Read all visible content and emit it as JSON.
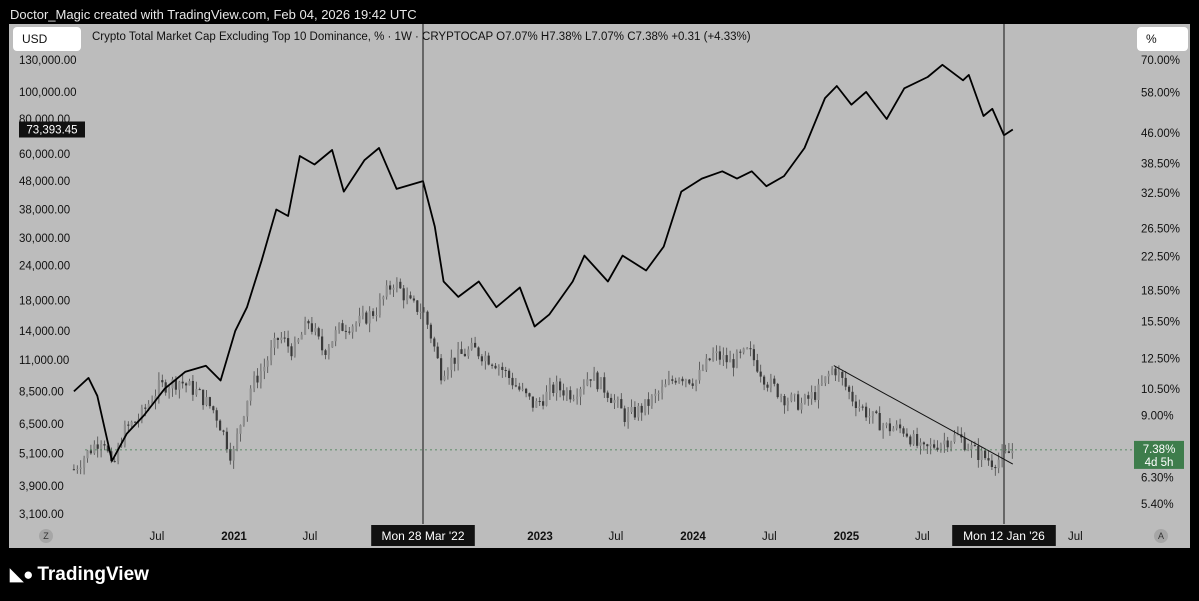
{
  "header": {
    "attribution": "Doctor_Magic created with TradingView.com, Feb 04, 2026 19:42 UTC"
  },
  "toolbar": {
    "left_unit": "USD",
    "right_unit": "%",
    "legend": "Crypto Total Market Cap Excluding Top 10 Dominance, % · 1W · CRYPTOCAP  O7.07%  H7.38%  L7.07%  C7.38%  +0.31 (+4.33%)"
  },
  "footer": {
    "logo_icon": "tradingview-logo-icon",
    "brand": "TradingView",
    "left_circle": "Z",
    "right_circle": "A"
  },
  "chart_data": {
    "type": "line",
    "title": "Crypto Total Market Cap Excluding Top 10 Dominance, % · 1W · CRYPTOCAP",
    "left_axis": {
      "scale": "log",
      "ticks": [
        "130,000.00",
        "100,000.00",
        "80,000.00",
        "60,000.00",
        "48,000.00",
        "38,000.00",
        "30,000.00",
        "24,000.00",
        "18,000.00",
        "14,000.00",
        "11,000.00",
        "8,500.00",
        "6,500.00",
        "5,100.00",
        "3,900.00",
        "3,100.00"
      ],
      "tick_values": [
        130000,
        100000,
        80000,
        60000,
        48000,
        38000,
        30000,
        24000,
        18000,
        14000,
        11000,
        8500,
        6500,
        5100,
        3900,
        3100
      ],
      "current_label": "73,393.45",
      "current_value": 73393.45
    },
    "right_axis": {
      "scale": "log",
      "ticks": [
        "70.00%",
        "58.00%",
        "46.00%",
        "38.50%",
        "32.50%",
        "26.50%",
        "22.50%",
        "18.50%",
        "15.50%",
        "12.50%",
        "10.50%",
        "9.00%",
        "6.30%",
        "5.40%"
      ],
      "tick_values": [
        70,
        58,
        46,
        38.5,
        32.5,
        26.5,
        22.5,
        18.5,
        15.5,
        12.5,
        10.5,
        9.0,
        6.3,
        5.4
      ],
      "current_label": "7.38%",
      "countdown": "4d 5h",
      "current_value": 7.38,
      "current_color": "#3e7d4c"
    },
    "x_axis": {
      "ticks": [
        {
          "label": "Jul",
          "date": "2020-07-01",
          "bold": false
        },
        {
          "label": "2021",
          "date": "2021-01-01",
          "bold": true
        },
        {
          "label": "Jul",
          "date": "2021-07-01",
          "bold": false
        },
        {
          "label": "2023",
          "date": "2023-01-01",
          "bold": true
        },
        {
          "label": "Jul",
          "date": "2023-07-01",
          "bold": false
        },
        {
          "label": "2024",
          "date": "2024-01-01",
          "bold": true
        },
        {
          "label": "Jul",
          "date": "2024-07-01",
          "bold": false
        },
        {
          "label": "2025",
          "date": "2025-01-01",
          "bold": true
        },
        {
          "label": "Jul",
          "date": "2025-07-01",
          "bold": false
        },
        {
          "label": "Jul",
          "date": "2026-07-01",
          "bold": false
        }
      ],
      "markers": [
        {
          "label": "Mon 28 Mar '22",
          "date": "2022-03-28"
        },
        {
          "label": "Mon 12 Jan '26",
          "date": "2026-01-12"
        }
      ]
    },
    "series": [
      {
        "axis": "left",
        "style": "line",
        "color": "#000000",
        "x": [
          "2019-12-16",
          "2020-01-20",
          "2020-02-10",
          "2020-03-16",
          "2020-04-20",
          "2020-06-01",
          "2020-07-20",
          "2020-09-07",
          "2020-10-26",
          "2020-11-30",
          "2021-01-04",
          "2021-02-01",
          "2021-03-08",
          "2021-04-12",
          "2021-05-10",
          "2021-06-07",
          "2021-07-12",
          "2021-08-23",
          "2021-09-20",
          "2021-11-08",
          "2021-12-13",
          "2022-01-24",
          "2022-03-28",
          "2022-04-25",
          "2022-05-16",
          "2022-06-20",
          "2022-08-08",
          "2022-09-19",
          "2022-11-14",
          "2022-12-19",
          "2023-01-23",
          "2023-03-20",
          "2023-04-17",
          "2023-06-12",
          "2023-07-17",
          "2023-09-11",
          "2023-10-23",
          "2023-12-04",
          "2024-01-22",
          "2024-03-11",
          "2024-04-15",
          "2024-05-20",
          "2024-06-24",
          "2024-08-05",
          "2024-09-23",
          "2024-11-11",
          "2024-12-09",
          "2025-01-13",
          "2025-02-17",
          "2025-04-07",
          "2025-05-19",
          "2025-07-14",
          "2025-08-18",
          "2025-10-06",
          "2025-10-20",
          "2025-11-24",
          "2025-12-15",
          "2026-01-12",
          "2026-02-02"
        ],
        "values": [
          8500,
          9500,
          8200,
          4800,
          6000,
          7000,
          8700,
          10000,
          10500,
          9300,
          14000,
          17000,
          25000,
          38000,
          36000,
          59000,
          55000,
          62000,
          44000,
          57000,
          63000,
          45000,
          48000,
          33000,
          21000,
          18500,
          21000,
          17000,
          20000,
          14500,
          16000,
          21000,
          26000,
          21000,
          26000,
          23000,
          28000,
          44000,
          49000,
          52000,
          49000,
          52000,
          46000,
          50000,
          63000,
          95000,
          105000,
          90000,
          100000,
          80000,
          103000,
          113000,
          125000,
          110000,
          115000,
          82000,
          87000,
          70000,
          73393
        ]
      },
      {
        "axis": "right",
        "style": "candlestick",
        "color": "#555555",
        "x": [
          "2019-12-16",
          "2020-01-20",
          "2020-02-24",
          "2020-03-16",
          "2020-04-13",
          "2020-05-25",
          "2020-07-06",
          "2020-08-24",
          "2020-10-05",
          "2020-11-16",
          "2020-12-28",
          "2021-02-08",
          "2021-03-15",
          "2021-04-19",
          "2021-05-24",
          "2021-06-28",
          "2021-08-02",
          "2021-09-13",
          "2021-10-25",
          "2021-12-06",
          "2022-01-17",
          "2022-02-28",
          "2022-03-28",
          "2022-05-09",
          "2022-05-30",
          "2022-07-25",
          "2022-09-19",
          "2022-11-07",
          "2022-12-19",
          "2023-02-06",
          "2023-03-20",
          "2023-05-01",
          "2023-06-12",
          "2023-07-24",
          "2023-09-04",
          "2023-10-16",
          "2023-11-27",
          "2024-01-08",
          "2024-02-19",
          "2024-04-01",
          "2024-05-13",
          "2024-06-24",
          "2024-08-05",
          "2024-09-16",
          "2024-10-28",
          "2024-12-02",
          "2025-01-13",
          "2025-02-24",
          "2025-04-07",
          "2025-05-19",
          "2025-06-30",
          "2025-08-11",
          "2025-09-22",
          "2025-11-03",
          "2025-12-15",
          "2026-01-12",
          "2026-02-02"
        ],
        "values": [
          6.6,
          7.3,
          8.0,
          6.5,
          8.2,
          9.0,
          10.6,
          11.0,
          10.3,
          9.2,
          7.0,
          10.5,
          12.0,
          14.2,
          13.0,
          15.5,
          13.0,
          15.0,
          15.4,
          16.5,
          19.5,
          17.0,
          16.5,
          11.5,
          12.3,
          13.2,
          12.2,
          10.6,
          9.5,
          10.6,
          10.2,
          11.4,
          10.3,
          8.9,
          9.4,
          10.3,
          11.4,
          11.0,
          12.8,
          12.2,
          13.0,
          11.0,
          10.0,
          9.6,
          10.4,
          11.9,
          10.0,
          9.0,
          8.4,
          8.3,
          7.3,
          7.7,
          8.0,
          7.3,
          6.9,
          7.07,
          7.38
        ]
      }
    ],
    "annotations": [
      {
        "type": "trendline",
        "axis": "right",
        "from": {
          "date": "2024-12-02",
          "value": 12.0
        },
        "to": {
          "date": "2026-02-02",
          "value": 6.8
        }
      }
    ]
  }
}
